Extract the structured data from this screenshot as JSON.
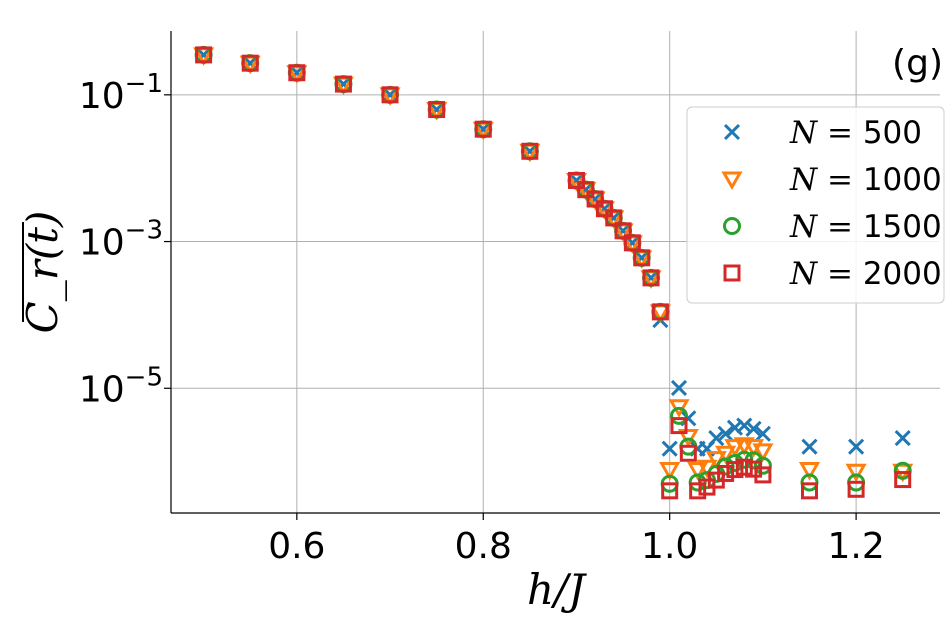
{
  "chart_data": {
    "type": "scatter",
    "panel_label": "(g)",
    "xlabel": "h/J",
    "ylabel": "C_r(t)",
    "xlim": [
      0.465,
      1.29
    ],
    "ylim_log10": [
      -6.7,
      -0.13
    ],
    "y_scale": "log",
    "grid": true,
    "legend_position": "right",
    "x_ticks": [
      0.6,
      0.8,
      1.0,
      1.2
    ],
    "x_tick_labels": [
      "0.6",
      "0.8",
      "1.0",
      "1.2"
    ],
    "y_ticks": [
      0.1,
      0.001,
      1e-05
    ],
    "y_tick_labels": [
      {
        "base": "10",
        "exp": "−1"
      },
      {
        "base": "10",
        "exp": "−3"
      },
      {
        "base": "10",
        "exp": "−5"
      }
    ],
    "series": [
      {
        "name": "N = 500",
        "label_var": "N = ",
        "label_num": "500",
        "marker": "x",
        "color": "#1f77b4",
        "x": [
          0.5,
          0.55,
          0.6,
          0.65,
          0.7,
          0.75,
          0.8,
          0.85,
          0.9,
          0.91,
          0.92,
          0.93,
          0.94,
          0.95,
          0.96,
          0.97,
          0.98,
          0.99,
          1.0,
          1.01,
          1.02,
          1.03,
          1.04,
          1.05,
          1.06,
          1.07,
          1.08,
          1.09,
          1.1,
          1.15,
          1.2,
          1.25
        ],
        "y": [
          0.35,
          0.27,
          0.2,
          0.14,
          0.1,
          0.063,
          0.034,
          0.017,
          0.0068,
          0.0051,
          0.0038,
          0.0028,
          0.0021,
          0.0014,
          0.00096,
          0.0006,
          0.00032,
          8.5e-05,
          1.5e-06,
          1.01e-05,
          3.9e-06,
          1.5e-06,
          1.5e-06,
          2.1e-06,
          2.4e-06,
          2.9e-06,
          3.1e-06,
          2.8e-06,
          2.4e-06,
          1.6e-06,
          1.6e-06,
          2.1e-06
        ]
      },
      {
        "name": "N = 1000",
        "label_var": "N = ",
        "label_num": "1000",
        "marker": "triangle_down",
        "color": "#ff7f0e",
        "x": [
          0.5,
          0.55,
          0.6,
          0.65,
          0.7,
          0.75,
          0.8,
          0.85,
          0.9,
          0.91,
          0.92,
          0.93,
          0.94,
          0.95,
          0.96,
          0.97,
          0.98,
          0.99,
          1.0,
          1.01,
          1.02,
          1.03,
          1.04,
          1.05,
          1.06,
          1.07,
          1.08,
          1.09,
          1.1,
          1.15,
          1.2,
          1.25
        ],
        "y": [
          0.35,
          0.27,
          0.2,
          0.14,
          0.1,
          0.063,
          0.034,
          0.017,
          0.0068,
          0.0051,
          0.0038,
          0.0028,
          0.0021,
          0.0014,
          0.00096,
          0.0006,
          0.00032,
          0.00011,
          7.8e-07,
          5.6e-06,
          2.2e-06,
          7.8e-07,
          8.4e-07,
          1.1e-06,
          1.3e-06,
          1.6e-06,
          1.7e-06,
          1.6e-06,
          1.4e-06,
          7.8e-07,
          7.4e-07,
          7.4e-07
        ]
      },
      {
        "name": "N = 1500",
        "label_var": "N = ",
        "label_num": "1500",
        "marker": "circle",
        "color": "#2ca02c",
        "x": [
          0.5,
          0.55,
          0.6,
          0.65,
          0.7,
          0.75,
          0.8,
          0.85,
          0.9,
          0.91,
          0.92,
          0.93,
          0.94,
          0.95,
          0.96,
          0.97,
          0.98,
          0.99,
          1.0,
          1.01,
          1.02,
          1.03,
          1.04,
          1.05,
          1.06,
          1.07,
          1.08,
          1.09,
          1.1,
          1.15,
          1.2,
          1.25
        ],
        "y": [
          0.35,
          0.27,
          0.2,
          0.14,
          0.1,
          0.063,
          0.034,
          0.017,
          0.0068,
          0.0051,
          0.0038,
          0.0028,
          0.0021,
          0.0014,
          0.00096,
          0.0006,
          0.00032,
          0.00011,
          5e-07,
          4.2e-06,
          1.6e-06,
          5.2e-07,
          5.6e-07,
          6.8e-07,
          8.6e-07,
          9.6e-07,
          1.06e-06,
          1.04e-06,
          8.8e-07,
          5.2e-07,
          5.2e-07,
          7.5e-07
        ]
      },
      {
        "name": "N = 2000",
        "label_var": "N = ",
        "label_num": "2000",
        "marker": "square",
        "color": "#d62728",
        "x": [
          0.5,
          0.55,
          0.6,
          0.65,
          0.7,
          0.75,
          0.8,
          0.85,
          0.9,
          0.91,
          0.92,
          0.93,
          0.94,
          0.95,
          0.96,
          0.97,
          0.98,
          0.99,
          1.0,
          1.01,
          1.02,
          1.03,
          1.04,
          1.05,
          1.06,
          1.07,
          1.08,
          1.09,
          1.1,
          1.15,
          1.2,
          1.25
        ],
        "y": [
          0.35,
          0.27,
          0.2,
          0.14,
          0.1,
          0.063,
          0.034,
          0.017,
          0.0068,
          0.0051,
          0.0038,
          0.0028,
          0.0021,
          0.0014,
          0.00096,
          0.0006,
          0.00032,
          0.00011,
          4e-07,
          3.1e-06,
          1.3e-06,
          4e-07,
          4.5e-07,
          5.6e-07,
          6.9e-07,
          7.8e-07,
          8.4e-07,
          7.9e-07,
          6.6e-07,
          4e-07,
          4.2e-07,
          5.7e-07
        ]
      }
    ]
  }
}
